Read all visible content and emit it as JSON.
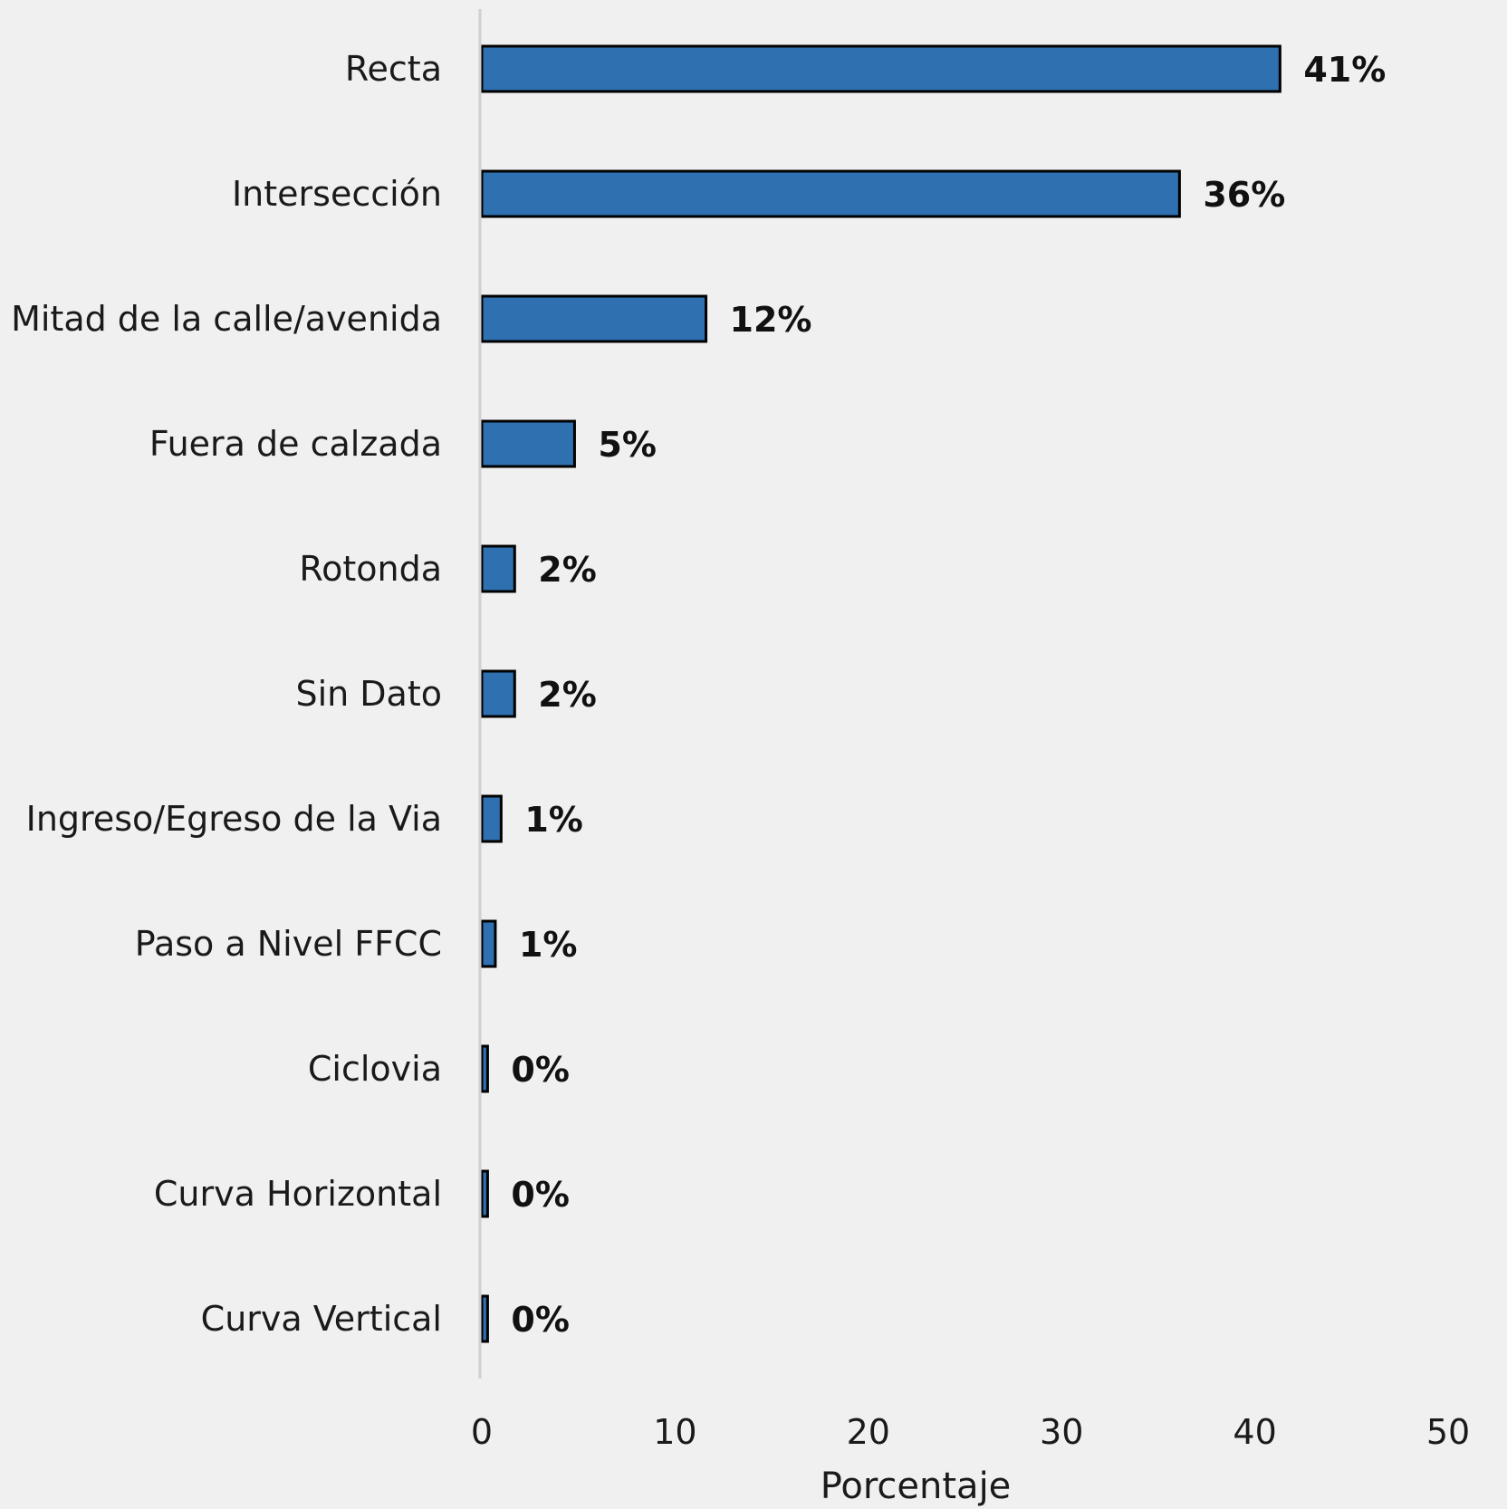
{
  "chart_data": {
    "type": "bar",
    "orientation": "horizontal",
    "categories": [
      "Recta",
      "Intersección",
      "Mitad de la calle/avenida",
      "Fuera de calzada",
      "Rotonda",
      "Sin Dato",
      "Ingreso/Egreso de la Via",
      "Paso a Nivel FFCC",
      "Ciclovia",
      "Curva Horizontal",
      "Curva Vertical"
    ],
    "values": [
      41.3,
      36.1,
      11.6,
      4.8,
      1.7,
      1.7,
      1.0,
      0.7,
      0.3,
      0.3,
      0.3
    ],
    "data_labels": [
      "41%",
      "36%",
      "12%",
      "5%",
      "2%",
      "2%",
      "1%",
      "1%",
      "0%",
      "0%",
      "0%"
    ],
    "xlabel": "Porcentaje",
    "xlim": [
      0,
      50
    ],
    "xticks": [
      "0",
      "10",
      "20",
      "30",
      "40",
      "50"
    ],
    "grid": false,
    "bar_color": "#2e70b0",
    "axis_line_color": "#d0d0d0"
  }
}
